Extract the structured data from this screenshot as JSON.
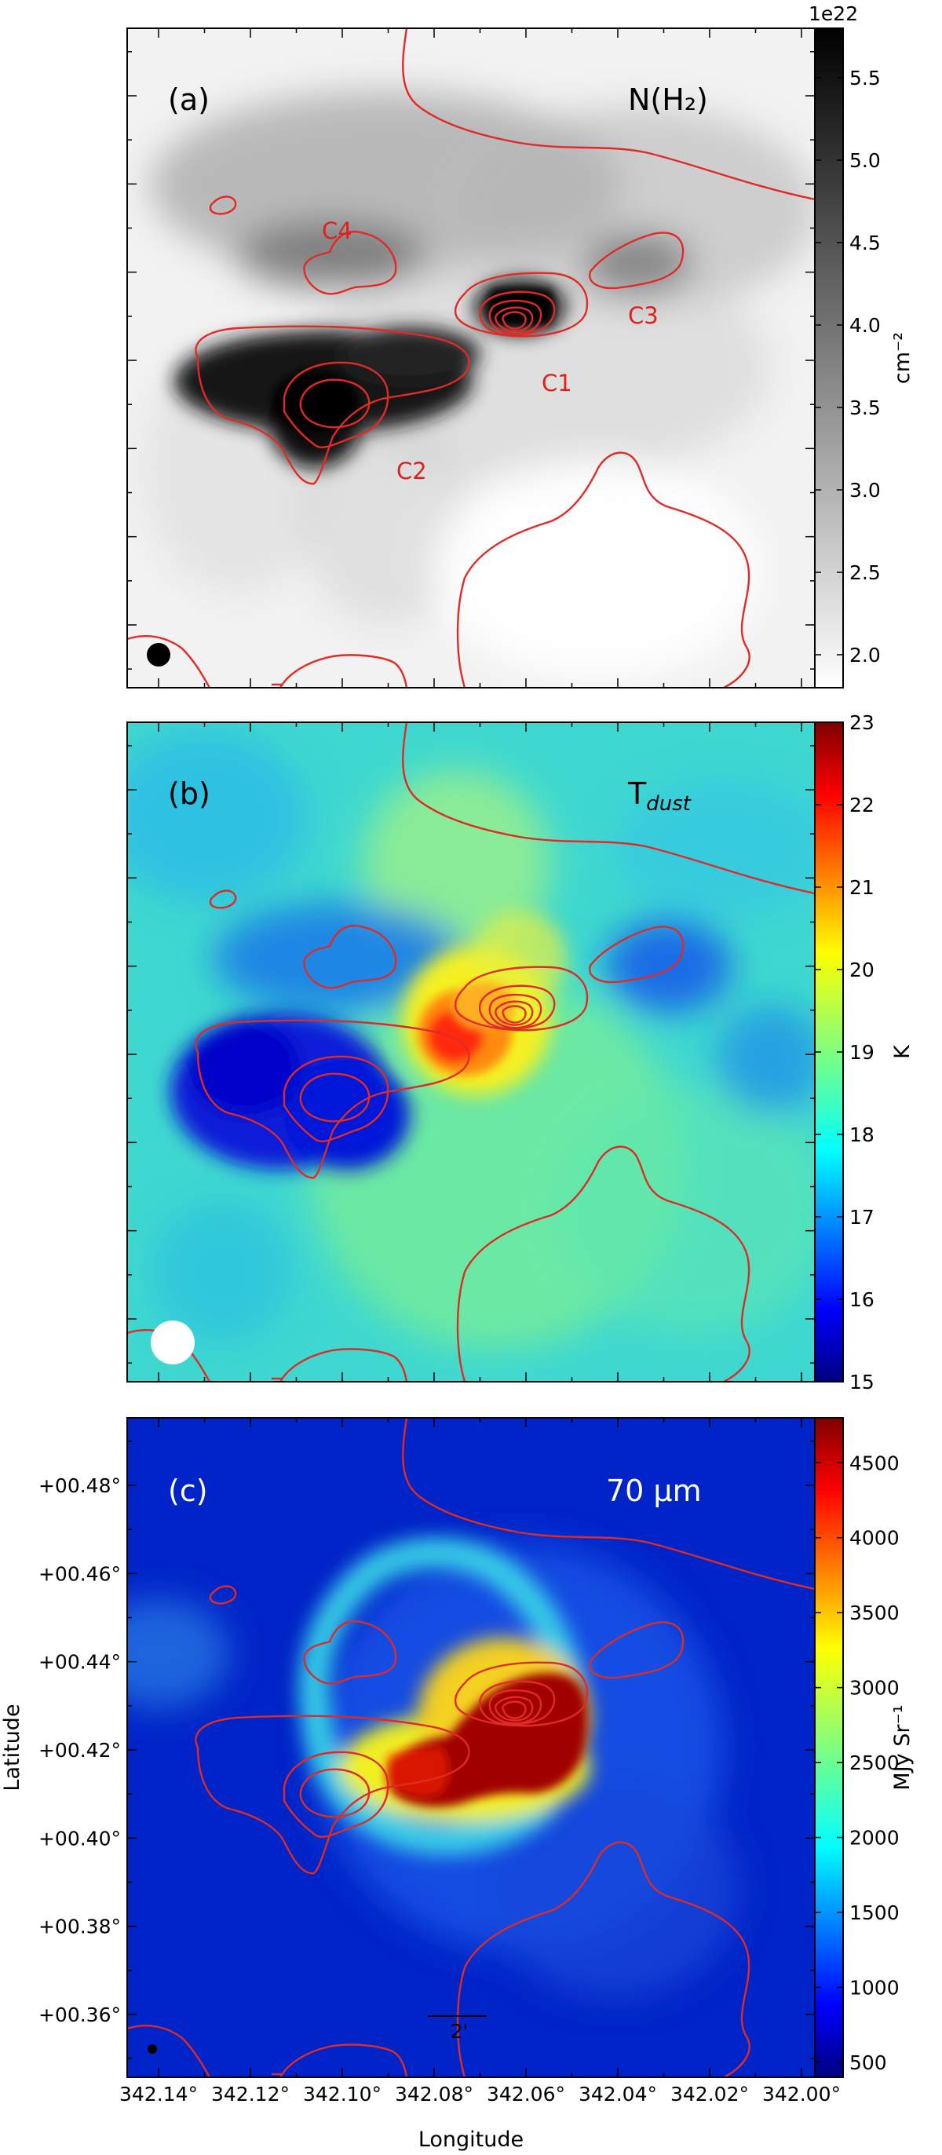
{
  "figure": {
    "panels": [
      {
        "id": "a",
        "label": "(a)",
        "quantity": "N(H₂)",
        "colorbar": {
          "cmap": "grey",
          "ticks": [
            "2.0",
            "2.5",
            "3.0",
            "3.5",
            "4.0",
            "4.5",
            "5.0",
            "5.5"
          ],
          "range": [
            1.8,
            5.8
          ],
          "offset_text": "1e22",
          "unit": "cm⁻²"
        },
        "clumps": [
          "C1",
          "C2",
          "C3",
          "C4"
        ],
        "beam_color": "#000000"
      },
      {
        "id": "b",
        "label": "(b)",
        "quantity": "T",
        "quantity_sub": "dust",
        "colorbar": {
          "cmap": "jet",
          "ticks": [
            "15",
            "16",
            "17",
            "18",
            "19",
            "20",
            "21",
            "22",
            "23"
          ],
          "range": [
            15,
            23
          ],
          "unit": "K"
        },
        "beam_color": "#ffffff"
      },
      {
        "id": "c",
        "label": "(c)",
        "quantity": "70 μm",
        "colorbar": {
          "cmap": "jet",
          "ticks": [
            "500",
            "1000",
            "1500",
            "2000",
            "2500",
            "3000",
            "3500",
            "4000",
            "4500"
          ],
          "range": [
            400,
            4800
          ],
          "unit": "MJy Sr⁻¹"
        },
        "scale_bar": "2'",
        "beam_color": "#000000"
      }
    ],
    "axes": {
      "xlabel": "Longitude",
      "ylabel": "Latitude",
      "x_ticks": [
        "342.14°",
        "342.12°",
        "342.10°",
        "342.08°",
        "342.06°",
        "342.04°",
        "342.02°",
        "342.00°"
      ],
      "y_ticks": [
        "+00.48°",
        "+00.46°",
        "+00.44°",
        "+00.42°",
        "+00.40°",
        "+00.38°",
        "+00.36°"
      ]
    },
    "colors": {
      "contour": "#e02a26",
      "frame": "#000000"
    }
  }
}
